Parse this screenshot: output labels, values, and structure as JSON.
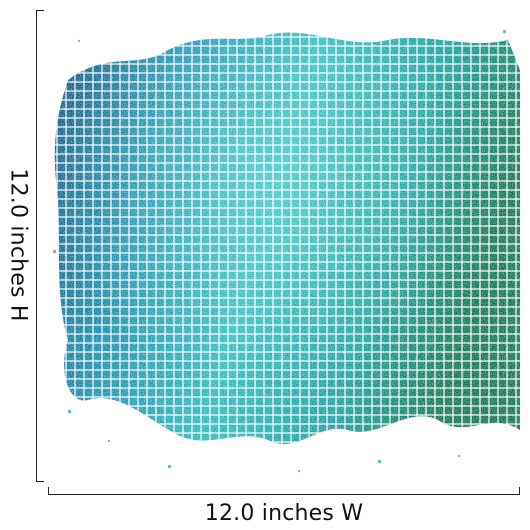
{
  "dimensions": {
    "height_label": "12.0 inches H",
    "width_label": "12.0 inches W"
  },
  "artwork": {
    "icon": "teal-mosaic-tile-wallpaper-image",
    "colors": {
      "deep_blue": "#0b4f7c",
      "teal": "#14a6b8",
      "aqua": "#3fd3d6",
      "green": "#0f7a55",
      "grout": "#ffffff"
    }
  }
}
